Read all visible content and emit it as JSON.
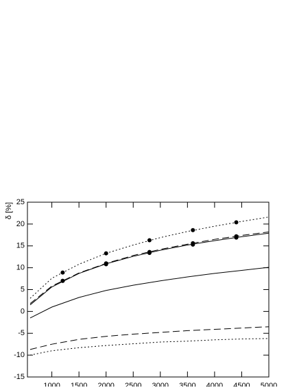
{
  "chart_data": {
    "type": "line",
    "y_label": "δ [%]",
    "xlim": [
      550,
      5000
    ],
    "ylim": [
      -15,
      25
    ],
    "xticks": [
      1000,
      1500,
      2000,
      2500,
      3000,
      3500,
      4000,
      4500,
      5000
    ],
    "yticks": [
      -15,
      -10,
      -5,
      0,
      5,
      10,
      15,
      20,
      25
    ],
    "color": "#000000",
    "series": [
      {
        "style": "dotted",
        "x": [
          600,
          1000,
          1500,
          2000,
          2500,
          3000,
          3500,
          4000,
          4500,
          5000
        ],
        "values": [
          3.0,
          7.6,
          10.8,
          13.3,
          15.2,
          16.9,
          18.3,
          19.5,
          20.6,
          21.6
        ]
      },
      {
        "style": "solid",
        "x": [
          600,
          1000,
          1500,
          2000,
          2500,
          3000,
          3500,
          4000,
          4500,
          5000
        ],
        "values": [
          1.5,
          5.6,
          8.7,
          10.9,
          12.6,
          14.0,
          15.2,
          16.2,
          17.1,
          17.9
        ]
      },
      {
        "style": "dashed",
        "x": [
          600,
          1000,
          1500,
          2000,
          2500,
          3000,
          3500,
          4000,
          4500,
          5000
        ],
        "values": [
          1.8,
          5.8,
          8.8,
          11.0,
          12.8,
          14.2,
          15.4,
          16.5,
          17.4,
          18.2
        ]
      },
      {
        "style": "solid",
        "x": [
          600,
          1000,
          1500,
          2000,
          2500,
          3000,
          3500,
          4000,
          4500,
          5000
        ],
        "values": [
          -1.5,
          1.0,
          3.2,
          4.8,
          6.0,
          7.0,
          7.9,
          8.7,
          9.4,
          10.1
        ]
      },
      {
        "style": "dashed",
        "x": [
          600,
          1000,
          1500,
          2000,
          2500,
          3000,
          3500,
          4000,
          4500,
          5000
        ],
        "values": [
          -8.7,
          -7.5,
          -6.4,
          -5.7,
          -5.2,
          -4.8,
          -4.4,
          -4.1,
          -3.8,
          -3.5
        ]
      },
      {
        "style": "dotted",
        "x": [
          600,
          1000,
          1500,
          2000,
          2500,
          3000,
          3500,
          4000,
          4500,
          5000
        ],
        "values": [
          -10.0,
          -9.0,
          -8.3,
          -7.8,
          -7.4,
          -7.0,
          -6.8,
          -6.5,
          -6.3,
          -6.2
        ]
      },
      {
        "style": "points",
        "x": [
          1200,
          2000,
          2800,
          3600,
          4400
        ],
        "values": [
          8.9,
          13.3,
          16.3,
          18.6,
          20.4
        ]
      },
      {
        "style": "points",
        "x": [
          1200,
          2000,
          2800,
          3600,
          4400
        ],
        "values": [
          7.0,
          11.0,
          13.6,
          15.6,
          17.2
        ]
      },
      {
        "style": "points",
        "x": [
          1200,
          2000,
          2800,
          3600,
          4400
        ],
        "values": [
          7.0,
          10.8,
          13.4,
          15.3,
          16.9
        ]
      }
    ]
  }
}
